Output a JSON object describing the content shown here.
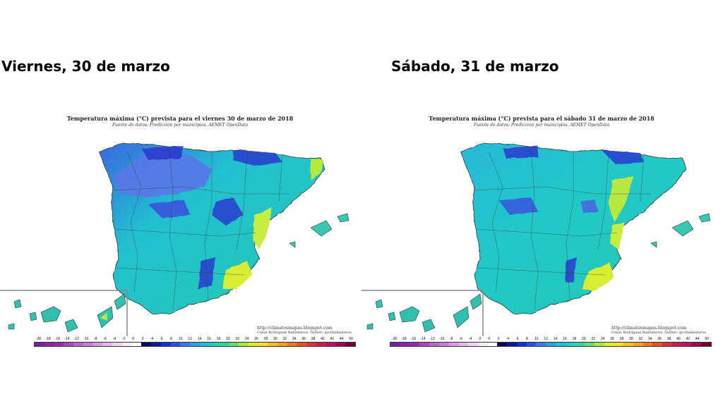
{
  "maps": [
    {
      "heading": "Viernes, 30 de marzo",
      "title": "Temperatura máxima (°C) prevista para el viernes 30 de marzo de 2018",
      "subtitle": "Fuente de datos: Predicción por municipios. AEMET OpenData",
      "credit_url": "http://climatosmapas.blogspot.com",
      "credit_author": "César Rodríguez Ballesteros. twitter: @crballesteros"
    },
    {
      "heading": "Sábado, 31 de marzo",
      "title": "Temperatura máxima (°C) prevista para el sábado 31 de marzo de 2018",
      "subtitle": "Fuente de datos: Predicción por municipios. AEMET OpenData",
      "credit_url": "http://climatosmapas.blogspot.com",
      "credit_author": "César Rodríguez Ballesteros. twitter: @crballesteros"
    }
  ],
  "legend": {
    "labels": [
      "-30",
      "-18",
      "-16",
      "-14",
      "-12",
      "-10",
      "-8",
      "-6",
      "-4",
      "-2",
      "0",
      "2",
      "4",
      "6",
      "8",
      "10",
      "12",
      "14",
      "16",
      "18",
      "20",
      "22",
      "24",
      "26",
      "28",
      "30",
      "32",
      "34",
      "36",
      "38",
      "40",
      "42",
      "44",
      "50"
    ],
    "colors": [
      "#7b1fa2",
      "#8e24aa",
      "#9c27b0",
      "#ab47bc",
      "#ba68c8",
      "#c77dd4",
      "#d79be0",
      "#e4b8ea",
      "#efd3f2",
      "#f8ecf9",
      "#ffffff",
      "#08085c",
      "#0a1a9a",
      "#1030d0",
      "#2850e8",
      "#3a78f0",
      "#2fa0e8",
      "#22c0d8",
      "#20d0c0",
      "#30d8a0",
      "#60e070",
      "#a8e840",
      "#e0ec30",
      "#f8e020",
      "#f8c020",
      "#f8a020",
      "#f07820",
      "#e85020",
      "#e03040",
      "#d01850",
      "#c01060",
      "#a00850",
      "#700030"
    ],
    "map_colors": {
      "cold_interior": "#5a78e8",
      "colder_mountains": "#2a3ad0",
      "mild_plateau": "#20c8c8",
      "warm_coast": "#b8e840",
      "ocean": "#ffffff",
      "border_lines": "#3a3a3a"
    }
  }
}
